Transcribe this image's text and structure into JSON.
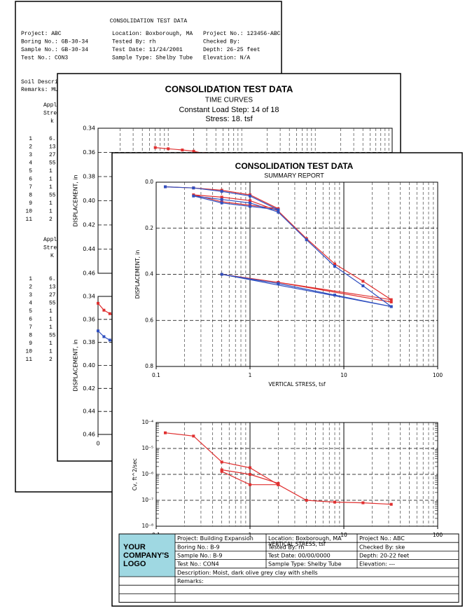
{
  "page1": {
    "title": "CONSOLIDATION TEST DATA",
    "fields": [
      [
        "Project: ABC",
        "Boring No.: GB-30-34",
        "Sample No.: GB-30-34",
        "Test No.: CON3"
      ],
      [
        "Location: Boxborough, MA",
        "Tested By: rh",
        "Test Date: 11/24/2001",
        "Sample Type: Shelby Tube"
      ],
      [
        "Project No.: 123456-ABC",
        "Checked By:",
        "Depth: 26-25 feet",
        "Elevation: N/A"
      ]
    ],
    "soil_description": "Soil Descriptio",
    "remarks": "Remarks:  MUST",
    "blocks": [
      {
        "header": [
          "Appli",
          "Stre",
          "k"
        ],
        "rows": [
          [
            "1",
            "6."
          ],
          [
            "2",
            "13"
          ],
          [
            "3",
            "27"
          ],
          [
            "4",
            "55"
          ],
          [
            "5",
            "1"
          ],
          [
            "6",
            "1"
          ],
          [
            "7",
            "1"
          ],
          [
            "8",
            "55"
          ],
          [
            "9",
            "1"
          ],
          [
            "10",
            "1"
          ],
          [
            "11",
            "2"
          ]
        ]
      },
      {
        "header": [
          "Appli",
          "Stre",
          "K"
        ],
        "rows": [
          [
            "1",
            "6."
          ],
          [
            "2",
            "13"
          ],
          [
            "3",
            "27"
          ],
          [
            "4",
            "55"
          ],
          [
            "5",
            "1"
          ],
          [
            "6",
            "1"
          ],
          [
            "7",
            "1"
          ],
          [
            "8",
            "55"
          ],
          [
            "9",
            "1"
          ],
          [
            "10",
            "1"
          ],
          [
            "11",
            "2"
          ]
        ]
      }
    ]
  },
  "page2": {
    "title": "CONSOLIDATION TEST DATA",
    "subtitle": "TIME CURVES",
    "load_step": "Constant Load Step: 14 of 18",
    "stress": "Stress: 18. tsf",
    "charts": [
      {
        "type": "line",
        "ylabel": "DISPLACEMENT, in",
        "log_x": true,
        "y_inverted": true,
        "grid": true,
        "xlim": [
          0.1,
          1000
        ],
        "ylim": [
          0.34,
          0.46
        ],
        "yticks": [
          0.34,
          0.36,
          0.38,
          {
            "value": 0.4,
            "label": "0.40"
          },
          0.42,
          0.44,
          0.46
        ],
        "series": [
          {
            "color": "#e03030",
            "x": [
              0.6,
              0.9,
              1.4,
              2,
              2.8
            ],
            "values": [
              0.356,
              0.357,
              0.358,
              0.359,
              0.361
            ]
          }
        ]
      },
      {
        "type": "line",
        "ylabel": "DISPLACEMENT, in",
        "log_x": false,
        "y_inverted": true,
        "grid": true,
        "xlim": [
          0,
          10
        ],
        "ylim": [
          0.34,
          0.46
        ],
        "xticks": [
          0
        ],
        "yticks": [
          0.34,
          0.36,
          0.38,
          {
            "value": 0.4,
            "label": "0.40"
          },
          0.42,
          0.44,
          0.46
        ],
        "series": [
          {
            "color": "#e03030",
            "x": [
              0,
              0.2,
              0.4,
              0.6,
              0.8
            ],
            "values": [
              0.346,
              0.352,
              0.355,
              0.357,
              0.359
            ]
          },
          {
            "color": "#3050c0",
            "x": [
              0,
              0.2,
              0.4,
              0.6,
              0.8
            ],
            "values": [
              0.37,
              0.375,
              0.378,
              0.38,
              0.381
            ]
          }
        ]
      }
    ]
  },
  "page3": {
    "title": "CONSOLIDATION TEST DATA",
    "subtitle": "SUMMARY REPORT",
    "charts": [
      {
        "type": "line",
        "xlabel": "VERTICAL STRESS, tsf",
        "ylabel": "DISPLACEMENT, in",
        "log_x": true,
        "y_inverted": true,
        "grid": true,
        "xlim": [
          0.1,
          100
        ],
        "ylim": [
          0,
          0.8
        ],
        "xticks": [
          0.1,
          1,
          10,
          100
        ],
        "yticks": [
          {
            "value": 0,
            "label": "0.0"
          },
          0.2,
          0.4,
          0.6,
          0.8
        ],
        "series": [
          {
            "color": "#e03030",
            "x": [
              0.125,
              0.25,
              0.5,
              1,
              2,
              1,
              0.5,
              0.25,
              0.5,
              1,
              2,
              4,
              8,
              16,
              32,
              2,
              0.5,
              2,
              32
            ],
            "values": [
              0.02,
              0.025,
              0.035,
              0.055,
              0.115,
              0.1,
              0.085,
              0.055,
              0.065,
              0.08,
              0.125,
              0.245,
              0.355,
              0.43,
              0.51,
              0.435,
              0.4,
              0.435,
              0.52
            ]
          },
          {
            "color": "#3050c0",
            "x": [
              0.125,
              0.25,
              0.5,
              1,
              2,
              1,
              0.5,
              0.25,
              0.5,
              1,
              2,
              4,
              8,
              16,
              32,
              8,
              2,
              0.5,
              32
            ],
            "values": [
              0.02,
              0.025,
              0.04,
              0.06,
              0.12,
              0.105,
              0.09,
              0.06,
              0.075,
              0.09,
              0.13,
              0.25,
              0.365,
              0.45,
              0.54,
              0.49,
              0.44,
              0.4,
              0.54
            ]
          }
        ]
      },
      {
        "type": "line",
        "xlabel": "VERTICAL STRESS, tsf",
        "ylabel": "Cv, ft^2/sec",
        "log_x": true,
        "log_y": true,
        "grid": true,
        "xlim": [
          0.1,
          100
        ],
        "ylim": [
          1e-08,
          0.0001
        ],
        "xticks": [
          0.1,
          1,
          10,
          100
        ],
        "yticks": [
          {
            "value": 0.0001,
            "label": "10⁻⁴"
          },
          {
            "value": 1e-05,
            "label": "10⁻⁵"
          },
          {
            "value": 1e-06,
            "label": "10⁻⁶"
          },
          {
            "value": 1e-07,
            "label": "10⁻⁷"
          },
          {
            "value": 1e-08,
            "label": "10⁻⁸"
          }
        ],
        "series": [
          {
            "color": "#e03030",
            "x": [
              0.125,
              0.25,
              0.5,
              1,
              2,
              4,
              8,
              16,
              32
            ],
            "values": [
              4e-05,
              3e-05,
              3e-06,
              1.8e-06,
              4e-07,
              1e-07,
              8.5e-08,
              8e-08,
              7e-08
            ]
          },
          {
            "color": "#e03030",
            "x": [
              0.5,
              1,
              2
            ],
            "values": [
              1.5e-06,
              1e-06,
              4.5e-07
            ]
          },
          {
            "color": "#e03030",
            "x": [
              0.5,
              1,
              2
            ],
            "values": [
              1.3e-06,
              4e-07,
              4e-07
            ]
          }
        ]
      }
    ],
    "table": {
      "logo": [
        "YOUR",
        "COMPANY'S",
        "LOGO"
      ],
      "rows": [
        [
          "Project: Building Expansion",
          "Location: Boxborough, MA",
          "Project No.: ABC"
        ],
        [
          "Boring No.: B-9",
          "Tested By: rh",
          "Checked By: ske"
        ],
        [
          "Sample No.: B-9",
          "Test Date: 00/00/0000",
          "Depth: 20-22 feet"
        ],
        [
          "Test No.: CON4",
          "Sample Type: Shelby Tube",
          "Elevation: ---"
        ]
      ],
      "description": "Description: Moist, dark olive grey clay with shells",
      "remarks": "Remarks:"
    }
  }
}
